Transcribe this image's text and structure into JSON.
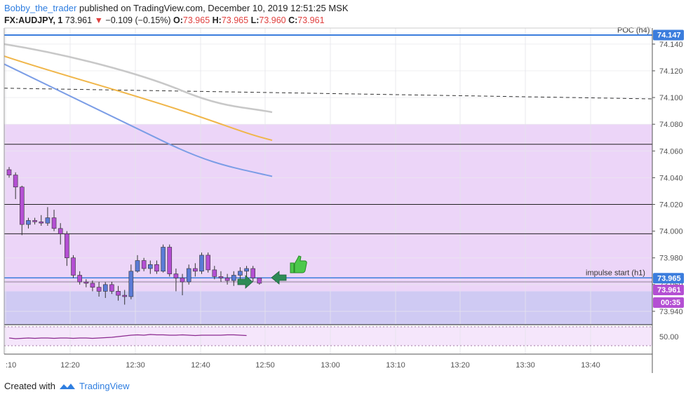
{
  "header": {
    "author": "Bobby_the_trader",
    "published_text": "published on TradingView.com, December 10, 2019 12:51:25 MSK",
    "symbol": "FX:AUDJPY, 1",
    "last_price": "73.961",
    "change_arrow": "▼",
    "change": "−0.109 (−0.15%)",
    "o_label": "O:",
    "o_value": "73.965",
    "h_label": "H:",
    "h_value": "73.965",
    "l_label": "L:",
    "l_value": "73.960",
    "c_label": "C:",
    "c_value": "73.961"
  },
  "footer": {
    "created_with": "Created with",
    "brand": "TradingView"
  },
  "annotations": {
    "poc_label": "POC (h4)",
    "impulse_label": "impulse start (h1)"
  },
  "price_tags": {
    "poc": "74.147",
    "impulse": "73.965",
    "current": "73.961",
    "countdown": "00:35"
  },
  "colors": {
    "up_candle": "#5b7bd6",
    "down_candle": "#b44fd3",
    "zone_fill": "#ecd5f8",
    "blue_zone_fill": "#cfcaf3",
    "rsi_line": "#8b2a8f",
    "poc_line": "#3b7ddd",
    "ma_gray": "#c8c8c8",
    "ma_orange": "#f0b64a",
    "ma_blue": "#7b9de6",
    "tag_blue": "#3b7ddd",
    "tag_purple": "#b44fd3",
    "arrow_green": "#2e8b57",
    "thumb_green": "#4cc84c"
  },
  "chart_data": {
    "type": "candlestick",
    "x_ticks": [
      ":10",
      "12:20",
      "12:30",
      "12:40",
      "12:50",
      "13:00",
      "13:10",
      "13:20",
      "13:30",
      "13:40"
    ],
    "y_ticks": [
      "74.140",
      "74.120",
      "74.100",
      "74.080",
      "74.060",
      "74.040",
      "74.020",
      "74.000",
      "73.980",
      "73.960",
      "73.940"
    ],
    "ylim": [
      73.93,
      74.152
    ],
    "rsi_tick": "50.00",
    "horizontal_levels": [
      74.147,
      74.065,
      74.02,
      73.998,
      73.965,
      73.962,
      73.92
    ],
    "dashed_trendline": [
      [
        74.107,
        74.099
      ]
    ],
    "candles": [
      {
        "t": "12:12",
        "o": 74.046,
        "h": 74.048,
        "l": 74.04,
        "c": 74.042
      },
      {
        "t": "12:13",
        "o": 74.042,
        "h": 74.044,
        "l": 74.024,
        "c": 74.033
      },
      {
        "t": "12:14",
        "o": 74.033,
        "h": 74.034,
        "l": 73.997,
        "c": 74.005
      },
      {
        "t": "12:15",
        "o": 74.005,
        "h": 74.01,
        "l": 74.002,
        "c": 74.008
      },
      {
        "t": "12:16",
        "o": 74.008,
        "h": 74.01,
        "l": 74.005,
        "c": 74.007
      },
      {
        "t": "12:17",
        "o": 74.007,
        "h": 74.012,
        "l": 74.004,
        "c": 74.006
      },
      {
        "t": "12:18",
        "o": 74.006,
        "h": 74.018,
        "l": 74.004,
        "c": 74.01
      },
      {
        "t": "12:19",
        "o": 74.01,
        "h": 74.016,
        "l": 74.0,
        "c": 74.002
      },
      {
        "t": "12:20",
        "o": 74.002,
        "h": 74.006,
        "l": 73.99,
        "c": 73.998
      },
      {
        "t": "12:21",
        "o": 73.998,
        "h": 74.0,
        "l": 73.974,
        "c": 73.98
      },
      {
        "t": "12:22",
        "o": 73.98,
        "h": 73.982,
        "l": 73.965,
        "c": 73.967
      },
      {
        "t": "12:23",
        "o": 73.967,
        "h": 73.97,
        "l": 73.96,
        "c": 73.962
      },
      {
        "t": "12:24",
        "o": 73.962,
        "h": 73.964,
        "l": 73.958,
        "c": 73.961
      },
      {
        "t": "12:25",
        "o": 73.961,
        "h": 73.963,
        "l": 73.955,
        "c": 73.958
      },
      {
        "t": "12:26",
        "o": 73.958,
        "h": 73.962,
        "l": 73.951,
        "c": 73.955
      },
      {
        "t": "12:27",
        "o": 73.955,
        "h": 73.962,
        "l": 73.95,
        "c": 73.96
      },
      {
        "t": "12:28",
        "o": 73.96,
        "h": 73.962,
        "l": 73.953,
        "c": 73.955
      },
      {
        "t": "12:29",
        "o": 73.955,
        "h": 73.959,
        "l": 73.948,
        "c": 73.952
      },
      {
        "t": "12:30",
        "o": 73.952,
        "h": 73.956,
        "l": 73.945,
        "c": 73.951
      },
      {
        "t": "12:31",
        "o": 73.951,
        "h": 73.975,
        "l": 73.949,
        "c": 73.97
      },
      {
        "t": "12:32",
        "o": 73.97,
        "h": 73.982,
        "l": 73.969,
        "c": 73.978
      },
      {
        "t": "12:33",
        "o": 73.978,
        "h": 73.98,
        "l": 73.97,
        "c": 73.972
      },
      {
        "t": "12:34",
        "o": 73.972,
        "h": 73.978,
        "l": 73.968,
        "c": 73.975
      },
      {
        "t": "12:35",
        "o": 73.975,
        "h": 73.978,
        "l": 73.968,
        "c": 73.97
      },
      {
        "t": "12:36",
        "o": 73.97,
        "h": 73.99,
        "l": 73.969,
        "c": 73.988
      },
      {
        "t": "12:37",
        "o": 73.988,
        "h": 73.99,
        "l": 73.966,
        "c": 73.968
      },
      {
        "t": "12:38",
        "o": 73.968,
        "h": 73.972,
        "l": 73.955,
        "c": 73.965
      },
      {
        "t": "12:39",
        "o": 73.965,
        "h": 73.968,
        "l": 73.952,
        "c": 73.962
      },
      {
        "t": "12:40",
        "o": 73.962,
        "h": 73.975,
        "l": 73.96,
        "c": 73.972
      },
      {
        "t": "12:41",
        "o": 73.972,
        "h": 73.976,
        "l": 73.966,
        "c": 73.97
      },
      {
        "t": "12:42",
        "o": 73.97,
        "h": 73.984,
        "l": 73.968,
        "c": 73.982
      },
      {
        "t": "12:43",
        "o": 73.982,
        "h": 73.984,
        "l": 73.969,
        "c": 73.971
      },
      {
        "t": "12:44",
        "o": 73.971,
        "h": 73.974,
        "l": 73.964,
        "c": 73.966
      },
      {
        "t": "12:45",
        "o": 73.966,
        "h": 73.97,
        "l": 73.962,
        "c": 73.965
      },
      {
        "t": "12:46",
        "o": 73.965,
        "h": 73.968,
        "l": 73.96,
        "c": 73.963
      },
      {
        "t": "12:47",
        "o": 73.963,
        "h": 73.97,
        "l": 73.959,
        "c": 73.967
      },
      {
        "t": "12:48",
        "o": 73.967,
        "h": 73.973,
        "l": 73.962,
        "c": 73.97
      },
      {
        "t": "12:49",
        "o": 73.97,
        "h": 73.974,
        "l": 73.966,
        "c": 73.972
      },
      {
        "t": "12:50",
        "o": 73.972,
        "h": 73.974,
        "l": 73.962,
        "c": 73.965
      },
      {
        "t": "12:51",
        "o": 73.965,
        "h": 73.965,
        "l": 73.96,
        "c": 73.961
      }
    ],
    "rsi": [
      48,
      47,
      47.5,
      48,
      47.5,
      48,
      48,
      47.5,
      48,
      48,
      47.5,
      48,
      48,
      47.5,
      48,
      48.5,
      49,
      50,
      51,
      52,
      52.5,
      52,
      53,
      52.5,
      52.5,
      52,
      52,
      52.5,
      52,
      51.5,
      52,
      52,
      52,
      52,
      52.5,
      52.5,
      52,
      51.5
    ]
  }
}
